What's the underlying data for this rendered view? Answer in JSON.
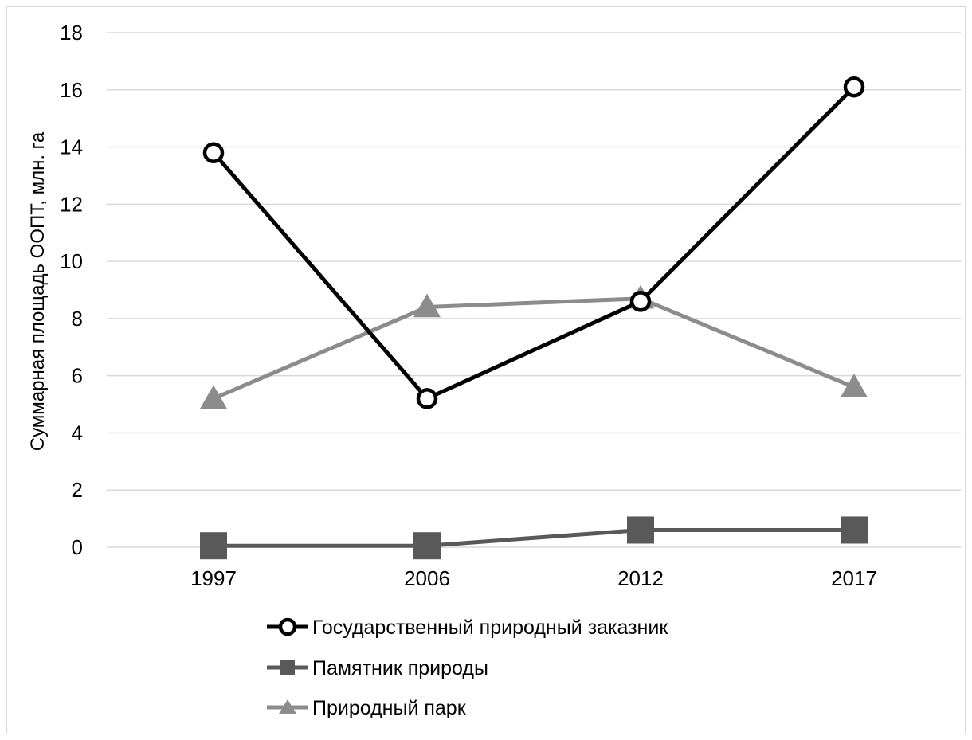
{
  "chart_data": {
    "type": "line",
    "categories": [
      "1997",
      "2006",
      "2012",
      "2017"
    ],
    "y_ticks": [
      "0",
      "2",
      "4",
      "6",
      "8",
      "10",
      "12",
      "14",
      "16",
      "18"
    ],
    "ylim": [
      0,
      18
    ],
    "xlabel": "",
    "ylabel": "Суммарная площадь ООПТ, млн. га",
    "grid": "horizontal",
    "legend_position": "bottom",
    "series": [
      {
        "name": "Государственный природный заказник",
        "values": [
          13.8,
          5.2,
          8.6,
          16.1
        ],
        "color": "#000000",
        "marker": "circle"
      },
      {
        "name": "Памятник природы",
        "values": [
          0.05,
          0.05,
          0.6,
          0.6
        ],
        "color": "#595959",
        "marker": "square"
      },
      {
        "name": "Природный парк",
        "values": [
          5.2,
          8.4,
          8.7,
          5.6
        ],
        "color": "#8c8c8c",
        "marker": "triangle"
      }
    ]
  }
}
